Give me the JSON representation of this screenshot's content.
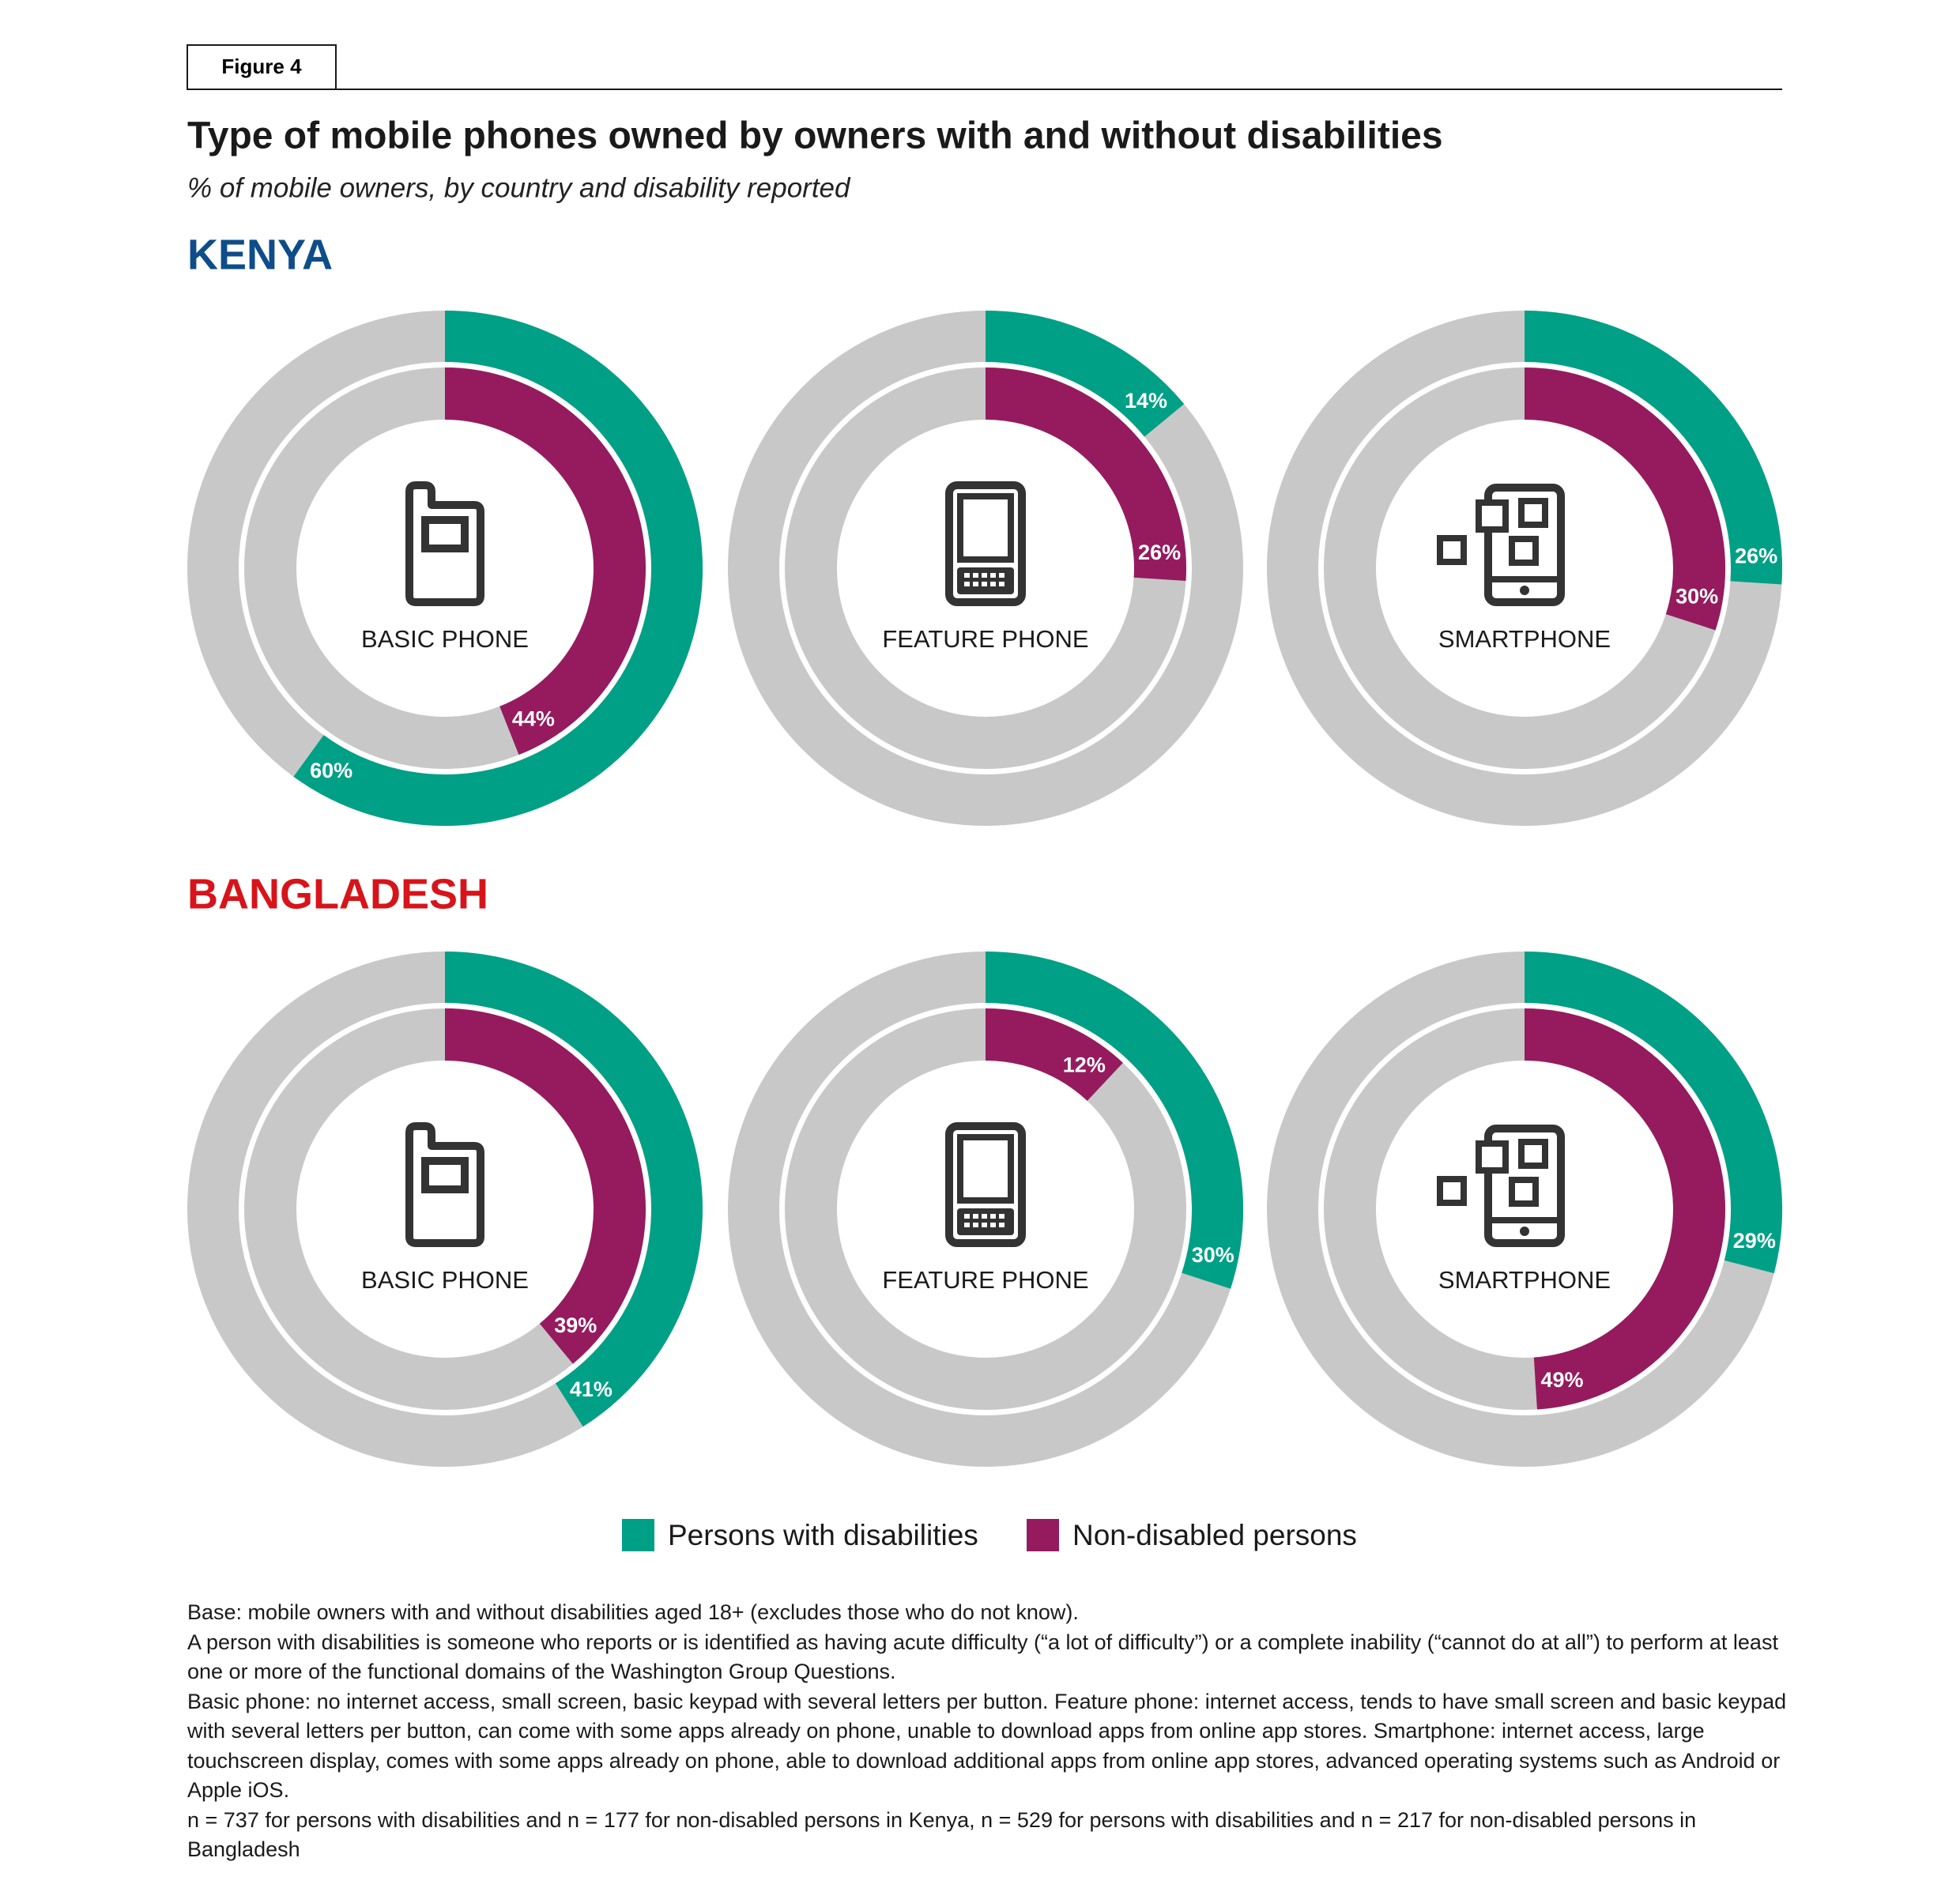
{
  "figure_label": "Figure 4",
  "chart_data": {
    "type": "donut",
    "title": "Type of mobile phones owned by owners with and without disabilities",
    "subtitle": "% of mobile owners, by country and disability reported",
    "groups": [
      {
        "name": "KENYA",
        "color": "#0e4d8a"
      },
      {
        "name": "BANGLADESH",
        "color": "#d7141a"
      }
    ],
    "categories": [
      "BASIC PHONE",
      "FEATURE PHONE",
      "SMARTPHONE"
    ],
    "track_color": "#c8c8c8",
    "series": [
      {
        "name": "Persons with disabilities",
        "color": "#00a086",
        "values": [
          [
            60,
            14,
            26
          ],
          [
            41,
            30,
            29
          ]
        ],
        "value_labels": [
          [
            "60%",
            "14%",
            "26%"
          ],
          [
            "41%",
            "30%",
            "29%"
          ]
        ]
      },
      {
        "name": "Non-disabled persons",
        "color": "#951b5e",
        "values": [
          [
            44,
            26,
            30
          ],
          [
            39,
            12,
            49
          ]
        ],
        "value_labels": [
          [
            "44%",
            "26%",
            "30%"
          ],
          [
            "39%",
            "12%",
            "49%"
          ]
        ]
      }
    ]
  },
  "notes": [
    "Base: mobile owners with and without disabilities aged 18+ (excludes those who do not know).",
    "A person with disabilities is someone who reports or is identified as having acute difficulty (“a lot of difficulty”) or a complete inability (“cannot do at all”) to perform at least one or more of the functional domains of the Washington Group Questions.",
    "Basic phone: no internet access, small screen, basic keypad with several letters per button. Feature phone: internet access, tends to have small screen and basic keypad with several letters per button, can come with some apps already on phone, unable to download apps from online app stores. Smartphone: internet access, large touchscreen display, comes with some apps already on phone, able to download additional apps from online app stores, advanced operating systems such as Android or Apple iOS.",
    "n = 737 for persons with disabilities and n = 177 for non-disabled persons in Kenya, n = 529 for persons with disabilities and n = 217 for non-disabled persons in Bangladesh"
  ]
}
